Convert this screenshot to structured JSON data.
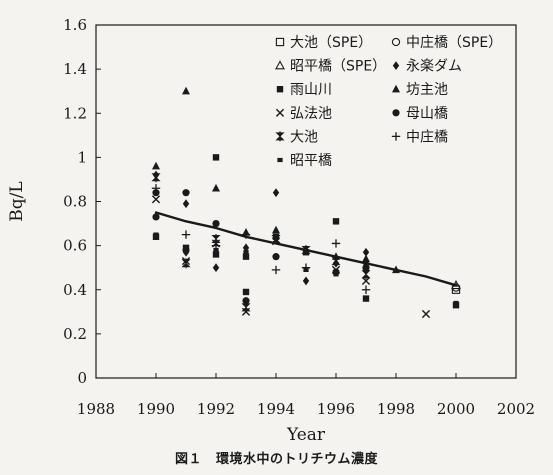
{
  "chart_data": {
    "type": "scatter",
    "title": "",
    "xlabel": "Year",
    "ylabel": "Bq/L",
    "xlim": [
      1988,
      2002
    ],
    "ylim": [
      0,
      1.6
    ],
    "xticks": [
      "1988",
      "1990",
      "1992",
      "1994",
      "1996",
      "1998",
      "2000",
      "2002"
    ],
    "yticks": [
      "0",
      "0.2",
      "0.4",
      "0.6",
      "0.8",
      "1",
      "1.2",
      "1.4",
      "1.6"
    ],
    "grid": false,
    "legend_position": "top-right",
    "series": [
      {
        "name": "大池（SPE）",
        "marker": "open-square",
        "points": [
          [
            2000,
            0.4
          ]
        ]
      },
      {
        "name": "中庄橋（SPE）",
        "marker": "open-circle",
        "points": [
          [
            2000,
            0.41
          ]
        ]
      },
      {
        "name": "昭平橋（SPE）",
        "marker": "open-triangle",
        "points": [
          [
            2000,
            0.42
          ]
        ]
      },
      {
        "name": "永楽ダム",
        "marker": "diamond",
        "points": [
          [
            1990,
            0.92
          ],
          [
            1991,
            0.79
          ],
          [
            1991,
            0.57
          ],
          [
            1992,
            0.5
          ],
          [
            1993,
            0.59
          ],
          [
            1994,
            0.84
          ],
          [
            1995,
            0.44
          ],
          [
            1996,
            0.52
          ],
          [
            1997,
            0.57
          ],
          [
            1997,
            0.49
          ]
        ]
      },
      {
        "name": "雨山川",
        "marker": "square",
        "points": [
          [
            1990,
            0.64
          ],
          [
            1991,
            0.59
          ],
          [
            1992,
            1.0
          ],
          [
            1992,
            0.56
          ],
          [
            1993,
            0.39
          ],
          [
            1993,
            0.55
          ],
          [
            1994,
            0.64
          ],
          [
            1995,
            0.57
          ],
          [
            1996,
            0.71
          ],
          [
            1997,
            0.36
          ],
          [
            2000,
            0.33
          ]
        ]
      },
      {
        "name": "坊主池",
        "marker": "triangle",
        "points": [
          [
            1990,
            0.96
          ],
          [
            1991,
            1.3
          ],
          [
            1992,
            0.86
          ],
          [
            1993,
            0.66
          ],
          [
            1994,
            0.67
          ],
          [
            1996,
            0.55
          ],
          [
            1997,
            0.54
          ],
          [
            1998,
            0.49
          ]
        ]
      },
      {
        "name": "弘法池",
        "marker": "x",
        "points": [
          [
            1990,
            0.81
          ],
          [
            1991,
            0.53
          ],
          [
            1992,
            0.61
          ],
          [
            1993,
            0.3
          ],
          [
            1994,
            0.62
          ],
          [
            1996,
            0.49
          ],
          [
            1997,
            0.44
          ],
          [
            1999,
            0.29
          ]
        ]
      },
      {
        "name": "母山橋",
        "marker": "circle",
        "points": [
          [
            1990,
            0.84
          ],
          [
            1990,
            0.73
          ],
          [
            1991,
            0.84
          ],
          [
            1991,
            0.58
          ],
          [
            1992,
            0.7
          ],
          [
            1993,
            0.35
          ],
          [
            1994,
            0.55
          ],
          [
            1996,
            0.48
          ],
          [
            1997,
            0.5
          ]
        ]
      },
      {
        "name": "大池",
        "marker": "hourglass",
        "points": [
          [
            1990,
            0.91
          ],
          [
            1991,
            0.52
          ],
          [
            1992,
            0.63
          ],
          [
            1993,
            0.32
          ],
          [
            1994,
            0.63
          ],
          [
            1995,
            0.58
          ],
          [
            1996,
            0.53
          ],
          [
            1997,
            0.47
          ]
        ]
      },
      {
        "name": "中庄橋",
        "marker": "plus",
        "points": [
          [
            1990,
            0.86
          ],
          [
            1991,
            0.65
          ],
          [
            1992,
            0.6
          ],
          [
            1993,
            0.65
          ],
          [
            1994,
            0.49
          ],
          [
            1995,
            0.5
          ],
          [
            1996,
            0.61
          ],
          [
            1997,
            0.4
          ]
        ]
      },
      {
        "name": "昭平橋",
        "marker": "small-square",
        "points": [
          [
            1990,
            0.65
          ],
          [
            1992,
            0.58
          ],
          [
            1993,
            0.57
          ],
          [
            1995,
            0.49
          ],
          [
            1996,
            0.47
          ],
          [
            1997,
            0.52
          ],
          [
            2000,
            0.34
          ]
        ]
      }
    ],
    "trendline": {
      "type": "exponential",
      "points": [
        [
          1990,
          0.75
        ],
        [
          1991,
          0.71
        ],
        [
          1992,
          0.68
        ],
        [
          1993,
          0.64
        ],
        [
          1994,
          0.61
        ],
        [
          1995,
          0.58
        ],
        [
          1996,
          0.55
        ],
        [
          1997,
          0.52
        ],
        [
          1998,
          0.49
        ],
        [
          1999,
          0.46
        ],
        [
          2000,
          0.42
        ]
      ]
    }
  },
  "caption": {
    "figure": "図１",
    "text": "環境水中のトリチウム濃度"
  }
}
